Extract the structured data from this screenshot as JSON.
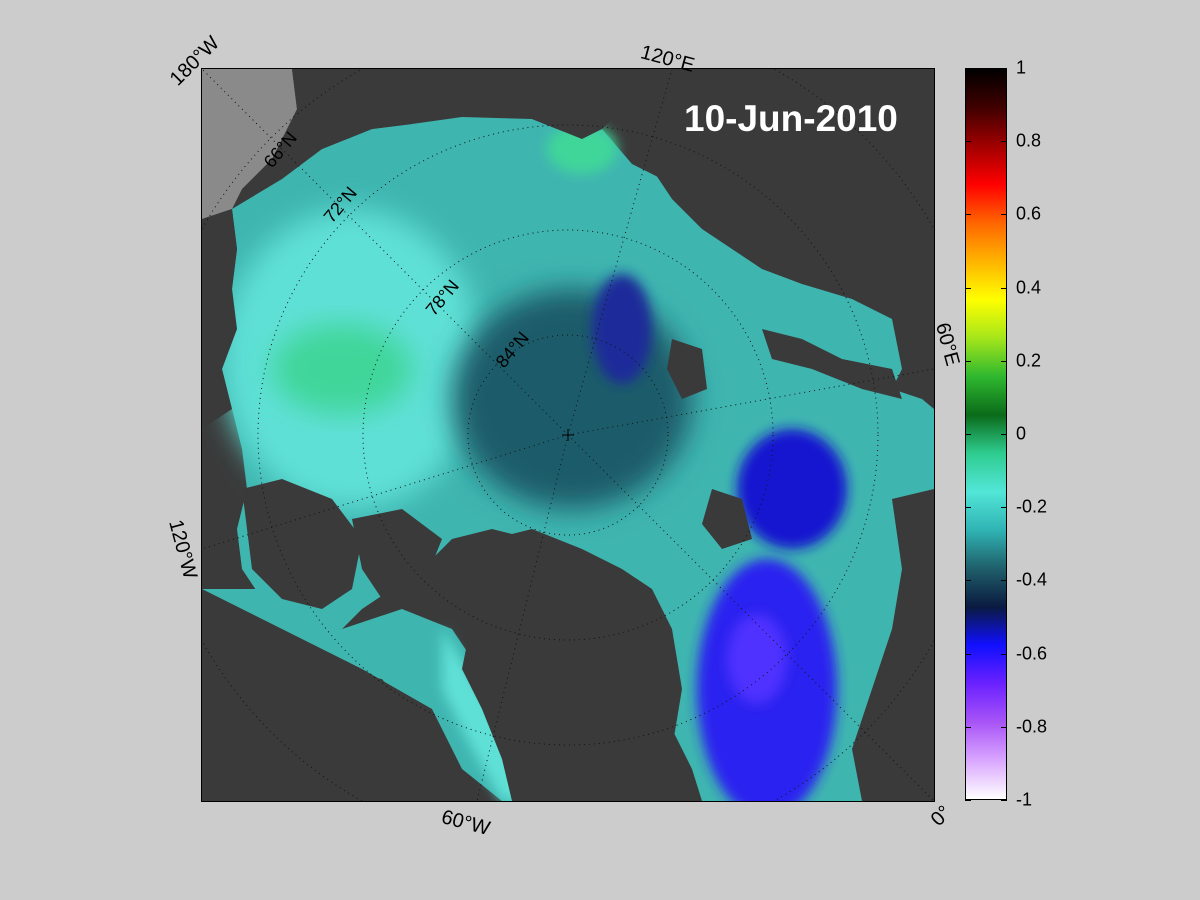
{
  "map": {
    "date": "10-Jun-2010",
    "lon_labels": [
      "180°W",
      "120°E",
      "60°E",
      "0°",
      "60°W",
      "120°W"
    ],
    "lat_labels": [
      "66°N",
      "72°N",
      "78°N",
      "84°N"
    ],
    "colors": {
      "land": "#3a3a3a",
      "land_mask": "#8a8a8a",
      "background": "#cccccc"
    }
  },
  "colorbar": {
    "ticks": [
      "1",
      "0.8",
      "0.6",
      "0.4",
      "0.2",
      "0",
      "-0.2",
      "-0.4",
      "-0.6",
      "-0.8",
      "-1"
    ],
    "range": [
      -1,
      1
    ],
    "colormap": [
      "#ffffff",
      "#d9a6ff",
      "#a855f7",
      "#6b21ff",
      "#1010ff",
      "#0a1a40",
      "#1f5f6a",
      "#2fb3b3",
      "#52e6d8",
      "#2ecc8f",
      "#0b6b1a",
      "#2fb82f",
      "#a6e61a",
      "#ffff00",
      "#ffb300",
      "#ff6600",
      "#ff0000",
      "#a00000",
      "#400000",
      "#000000"
    ]
  }
}
